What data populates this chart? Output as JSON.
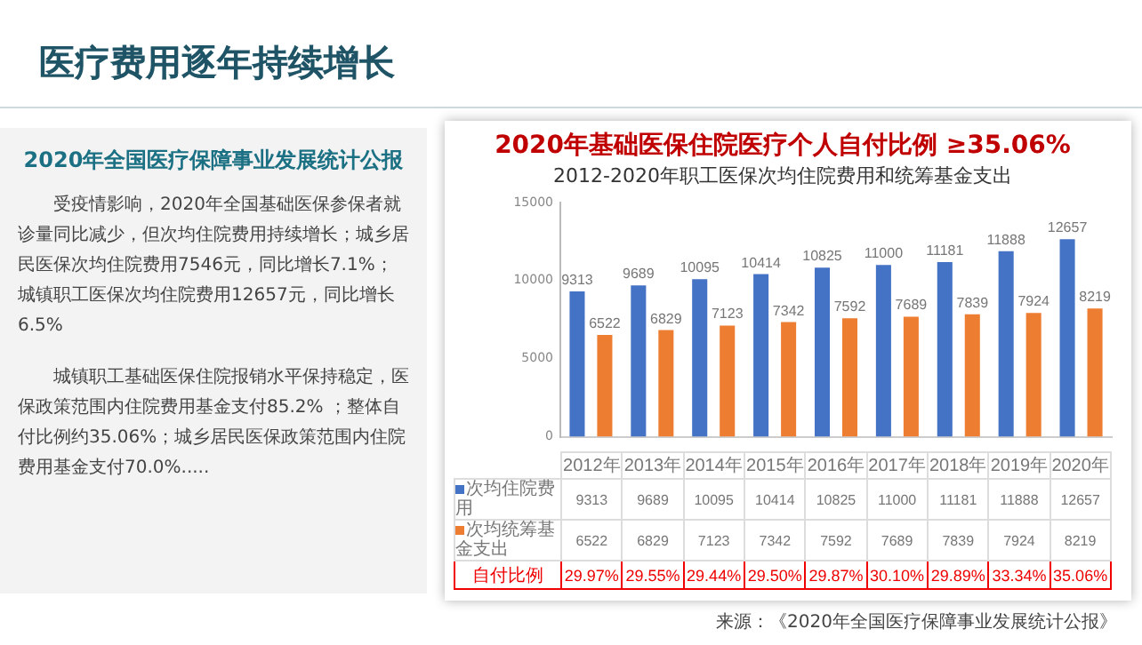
{
  "chart_data": {
    "type": "bar",
    "title": "2020年基础医保住院医疗个人自付比例 ≥35.06%",
    "subtitle": "2012-2020年职工医保次均住院费用和统筹基金支出",
    "categories": [
      "2012年",
      "2013年",
      "2014年",
      "2015年",
      "2016年",
      "2017年",
      "2018年",
      "2019年",
      "2020年"
    ],
    "series": [
      {
        "name": "次均住院费用",
        "color": "#4472c4",
        "values": [
          9313,
          9689,
          10095,
          10414,
          10825,
          11000,
          11181,
          11888,
          12657
        ],
        "value_labels": [
          "9313",
          "9689",
          "10095",
          "10414",
          "10825",
          "11000",
          "11181",
          "11888",
          "12657"
        ]
      },
      {
        "name": "次均统筹基金支出",
        "color": "#ed7d31",
        "values": [
          6522,
          6829,
          7123,
          7342,
          7592,
          7689,
          7839,
          7924,
          8219
        ],
        "value_labels": [
          "6522",
          "6829",
          "7123",
          "7342",
          "7592",
          "7689",
          "7839",
          "7924",
          "8219"
        ]
      }
    ],
    "ylim": [
      0,
      15000
    ],
    "yticks": [
      0,
      5000,
      10000,
      15000
    ],
    "grid": false,
    "legend": "bottom",
    "annotations": [
      "医疗费用逐年持续增长",
      "2020年全国医疗保障事业发展统计公报",
      "受疫情影响，2020年全国基础医保参保者就诊量同比减少，但次均住院费用持续增长；城乡居民医保次均住院费用7546元，同比增长7.1%；城镇职工医保次均住院费用12657元，同比增长6.5%",
      "城镇职工基础医保住院报销水平保持稳定，医保政策范围内住院费用基金支付85.2% ；整体自付比例约35.06%；城乡居民医保政策范围内住院费用基金支付70.0%.....",
      "自付比例",
      "来源：《2020年全国医疗保障事业发展统计公报》",
      "29.97%",
      "29.55%",
      "29.44%",
      "29.50%",
      "29.87%",
      "30.10%",
      "29.89%",
      "33.34%",
      "35.06%",
      "9313",
      "9689",
      "10095",
      "10414",
      "10825",
      "11000",
      "11181",
      "11888",
      "12657",
      "6522",
      "6829",
      "7123",
      "7342",
      "7592",
      "7689",
      "7839",
      "7924",
      "8219"
    ]
  }
}
